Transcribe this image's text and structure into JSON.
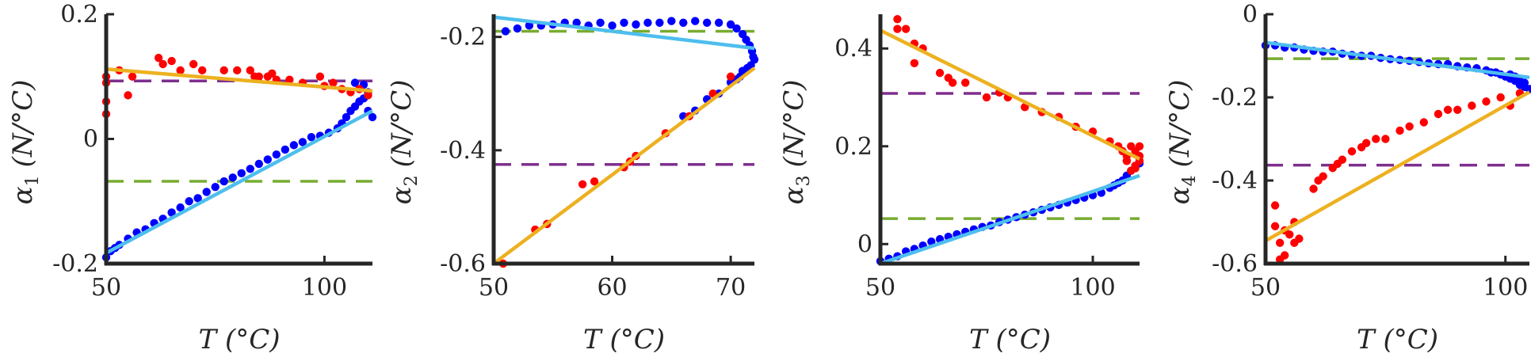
{
  "chart_data": [
    {
      "type": "scatter",
      "xlabel": "T (°C)",
      "ylabel": {
        "symbol": "α",
        "sub": "1",
        "unit": "(N/°C)"
      },
      "xlim": [
        50,
        111
      ],
      "ylim": [
        -0.2,
        0.2
      ],
      "xticks": [
        50,
        100
      ],
      "xtick_labels": [
        "50",
        "100"
      ],
      "yticks": [
        -0.2,
        0,
        0.2
      ],
      "ytick_labels": [
        "-0.2",
        "0",
        "0.2"
      ],
      "series": [
        {
          "kind": "points",
          "color": "#0000ff",
          "x": [
            50,
            51,
            52,
            53,
            55,
            57,
            59,
            61,
            63,
            65,
            67,
            69,
            71,
            73,
            75,
            77,
            79,
            81,
            83,
            85,
            87,
            89,
            91,
            93,
            95,
            97,
            99,
            101,
            103,
            104,
            105,
            106,
            107,
            108,
            109,
            110,
            111,
            110,
            109,
            107
          ],
          "y": [
            -0.19,
            -0.18,
            -0.175,
            -0.17,
            -0.16,
            -0.15,
            -0.145,
            -0.135,
            -0.128,
            -0.118,
            -0.11,
            -0.1,
            -0.095,
            -0.085,
            -0.077,
            -0.068,
            -0.062,
            -0.055,
            -0.048,
            -0.04,
            -0.033,
            -0.025,
            -0.017,
            -0.01,
            -0.005,
            0.003,
            0.005,
            0.01,
            0.017,
            0.025,
            0.035,
            0.045,
            0.052,
            0.06,
            0.065,
            0.045,
            0.035,
            0.075,
            0.087,
            0.09
          ]
        },
        {
          "kind": "points",
          "color": "#ff0000",
          "x": [
            50,
            50,
            50,
            50,
            53,
            55,
            56,
            62,
            63,
            65,
            67,
            70,
            72,
            77,
            80,
            83,
            84,
            85,
            87,
            88,
            89,
            92,
            95,
            99,
            100,
            102,
            104,
            106,
            108,
            110
          ],
          "y": [
            0.04,
            0.06,
            0.1,
            0.09,
            0.11,
            0.07,
            0.1,
            0.13,
            0.12,
            0.125,
            0.11,
            0.12,
            0.11,
            0.11,
            0.11,
            0.11,
            0.1,
            0.1,
            0.1,
            0.105,
            0.095,
            0.095,
            0.09,
            0.1,
            0.085,
            0.09,
            0.08,
            0.075,
            0.08,
            0.07
          ]
        },
        {
          "kind": "fit",
          "color": "#edb120",
          "x": [
            50,
            111
          ],
          "y": [
            0.112,
            0.077
          ]
        },
        {
          "kind": "fit",
          "color": "#4dbeee",
          "x": [
            50,
            111
          ],
          "y": [
            -0.183,
            0.045
          ]
        },
        {
          "kind": "hline",
          "color": "#7e2f8e",
          "y": 0.093
        },
        {
          "kind": "hline",
          "color": "#77ac30",
          "y": -0.068
        }
      ]
    },
    {
      "type": "scatter",
      "xlabel": "T (°C)",
      "ylabel": {
        "symbol": "α",
        "sub": "2",
        "unit": "(N/°C)"
      },
      "xlim": [
        50,
        72
      ],
      "ylim": [
        -0.6,
        -0.16
      ],
      "xticks": [
        50,
        60,
        70
      ],
      "xtick_labels": [
        "50",
        "60",
        "70"
      ],
      "yticks": [
        -0.6,
        -0.4,
        -0.2
      ],
      "ytick_labels": [
        "-0.6",
        "-0.4",
        "-0.2"
      ],
      "series": [
        {
          "kind": "points",
          "color": "#0000ff",
          "x": [
            51,
            52,
            53,
            54,
            55,
            56,
            57,
            58,
            59,
            60,
            61,
            62,
            63,
            64,
            65,
            66,
            67,
            68,
            69,
            70,
            70.5,
            71,
            71.3,
            71.6,
            71.8,
            71.9,
            72,
            71.7,
            71.4,
            71,
            70.8,
            70.5,
            70,
            69,
            68,
            67,
            66
          ],
          "y": [
            -0.19,
            -0.185,
            -0.18,
            -0.18,
            -0.178,
            -0.175,
            -0.175,
            -0.18,
            -0.175,
            -0.18,
            -0.175,
            -0.178,
            -0.175,
            -0.175,
            -0.172,
            -0.175,
            -0.172,
            -0.175,
            -0.175,
            -0.178,
            -0.185,
            -0.195,
            -0.205,
            -0.215,
            -0.225,
            -0.235,
            -0.24,
            -0.25,
            -0.255,
            -0.26,
            -0.27,
            -0.275,
            -0.28,
            -0.3,
            -0.31,
            -0.33,
            -0.34
          ]
        },
        {
          "kind": "points",
          "color": "#ff0000",
          "x": [
            50.8,
            53.5,
            54.5,
            57.5,
            58.5,
            61,
            61.5,
            62,
            64.5,
            66.5,
            68.5,
            70
          ],
          "y": [
            -0.6,
            -0.54,
            -0.53,
            -0.46,
            -0.455,
            -0.43,
            -0.42,
            -0.41,
            -0.37,
            -0.34,
            -0.3,
            -0.27
          ]
        },
        {
          "kind": "fit",
          "color": "#edb120",
          "x": [
            50,
            72
          ],
          "y": [
            -0.6,
            -0.255
          ]
        },
        {
          "kind": "fit",
          "color": "#4dbeee",
          "x": [
            50,
            72
          ],
          "y": [
            -0.165,
            -0.22
          ]
        },
        {
          "kind": "hline",
          "color": "#7e2f8e",
          "y": -0.425
        },
        {
          "kind": "hline",
          "color": "#77ac30",
          "y": -0.19
        }
      ]
    },
    {
      "type": "scatter",
      "xlabel": "T (°C)",
      "ylabel": {
        "symbol": "α",
        "sub": "3",
        "unit": "(N/°C)"
      },
      "xlim": [
        50,
        111
      ],
      "ylim": [
        -0.04,
        0.47
      ],
      "xticks": [
        50,
        100
      ],
      "xtick_labels": [
        "50",
        "100"
      ],
      "yticks": [
        0,
        0.2,
        0.4
      ],
      "ytick_labels": [
        "0",
        "0.2",
        "0.4"
      ],
      "series": [
        {
          "kind": "points",
          "color": "#0000ff",
          "x": [
            50,
            52,
            54,
            56,
            58,
            60,
            62,
            64,
            66,
            68,
            70,
            72,
            74,
            76,
            78,
            80,
            82,
            84,
            86,
            88,
            90,
            92,
            94,
            96,
            98,
            100,
            102,
            104,
            105,
            106,
            107,
            108,
            109,
            110,
            111
          ],
          "y": [
            -0.035,
            -0.03,
            -0.025,
            -0.015,
            -0.01,
            -0.003,
            0.005,
            0.01,
            0.015,
            0.02,
            0.025,
            0.03,
            0.035,
            0.038,
            0.045,
            0.05,
            0.055,
            0.06,
            0.065,
            0.07,
            0.075,
            0.08,
            0.085,
            0.09,
            0.095,
            0.1,
            0.105,
            0.115,
            0.12,
            0.125,
            0.13,
            0.14,
            0.15,
            0.16,
            0.165
          ]
        },
        {
          "kind": "points",
          "color": "#ff0000",
          "x": [
            54,
            54,
            56,
            58,
            58,
            60,
            64,
            66,
            67,
            70,
            75,
            78,
            80,
            84,
            88,
            92,
            96,
            100,
            104,
            106,
            107,
            108,
            108,
            109,
            110,
            110,
            111,
            111,
            110,
            109,
            108,
            111
          ],
          "y": [
            0.46,
            0.44,
            0.44,
            0.37,
            0.41,
            0.4,
            0.35,
            0.34,
            0.33,
            0.33,
            0.3,
            0.31,
            0.3,
            0.28,
            0.27,
            0.26,
            0.24,
            0.23,
            0.21,
            0.2,
            0.19,
            0.18,
            0.17,
            0.2,
            0.19,
            0.16,
            0.17,
            0.2,
            0.155,
            0.15,
            0.17,
            0.18
          ]
        },
        {
          "kind": "fit",
          "color": "#edb120",
          "x": [
            50,
            111
          ],
          "y": [
            0.437,
            0.174
          ]
        },
        {
          "kind": "fit",
          "color": "#4dbeee",
          "x": [
            50,
            111
          ],
          "y": [
            -0.04,
            0.14
          ]
        },
        {
          "kind": "hline",
          "color": "#7e2f8e",
          "y": 0.308
        },
        {
          "kind": "hline",
          "color": "#77ac30",
          "y": 0.052
        }
      ]
    },
    {
      "type": "scatter",
      "xlabel": "T (°C)",
      "ylabel": {
        "symbol": "α",
        "sub": "4",
        "unit": "(N/°C)"
      },
      "xlim": [
        50,
        105
      ],
      "ylim": [
        -0.6,
        0
      ],
      "xticks": [
        50,
        100
      ],
      "xtick_labels": [
        "50",
        "100"
      ],
      "yticks": [
        -0.6,
        -0.4,
        -0.2,
        0
      ],
      "ytick_labels": [
        "-0.6",
        "-0.4",
        "-0.2",
        "0"
      ],
      "series": [
        {
          "kind": "points",
          "color": "#0000ff",
          "x": [
            50,
            52,
            54,
            56,
            58,
            60,
            62,
            64,
            66,
            68,
            70,
            72,
            74,
            76,
            78,
            80,
            82,
            84,
            86,
            88,
            90,
            92,
            94,
            96,
            97,
            98,
            99,
            100,
            101,
            102,
            103,
            104,
            105,
            104,
            103,
            102,
            101
          ],
          "y": [
            -0.075,
            -0.075,
            -0.08,
            -0.08,
            -0.085,
            -0.088,
            -0.09,
            -0.09,
            -0.095,
            -0.098,
            -0.1,
            -0.1,
            -0.105,
            -0.108,
            -0.11,
            -0.112,
            -0.115,
            -0.118,
            -0.12,
            -0.12,
            -0.125,
            -0.128,
            -0.13,
            -0.135,
            -0.14,
            -0.14,
            -0.145,
            -0.15,
            -0.155,
            -0.16,
            -0.17,
            -0.175,
            -0.18,
            -0.165,
            -0.16,
            -0.15,
            -0.145
          ]
        },
        {
          "kind": "points",
          "color": "#ff0000",
          "x": [
            52,
            52,
            53,
            53,
            54,
            54,
            55,
            56,
            56,
            57,
            60,
            61,
            62,
            64,
            65,
            66,
            68,
            70,
            71,
            73,
            75,
            78,
            80,
            83,
            86,
            88,
            90,
            93,
            96,
            99,
            101,
            103
          ],
          "y": [
            -0.46,
            -0.51,
            -0.55,
            -0.59,
            -0.52,
            -0.58,
            -0.53,
            -0.5,
            -0.55,
            -0.54,
            -0.42,
            -0.4,
            -0.39,
            -0.37,
            -0.36,
            -0.35,
            -0.33,
            -0.32,
            -0.31,
            -0.3,
            -0.3,
            -0.28,
            -0.27,
            -0.26,
            -0.24,
            -0.23,
            -0.23,
            -0.22,
            -0.21,
            -0.2,
            -0.22,
            -0.19
          ]
        },
        {
          "kind": "fit",
          "color": "#edb120",
          "x": [
            50,
            105
          ],
          "y": [
            -0.545,
            -0.187
          ]
        },
        {
          "kind": "fit",
          "color": "#4dbeee",
          "x": [
            50,
            105
          ],
          "y": [
            -0.068,
            -0.152
          ]
        },
        {
          "kind": "hline",
          "color": "#7e2f8e",
          "y": -0.363
        },
        {
          "kind": "hline",
          "color": "#77ac30",
          "y": -0.107
        }
      ]
    }
  ]
}
